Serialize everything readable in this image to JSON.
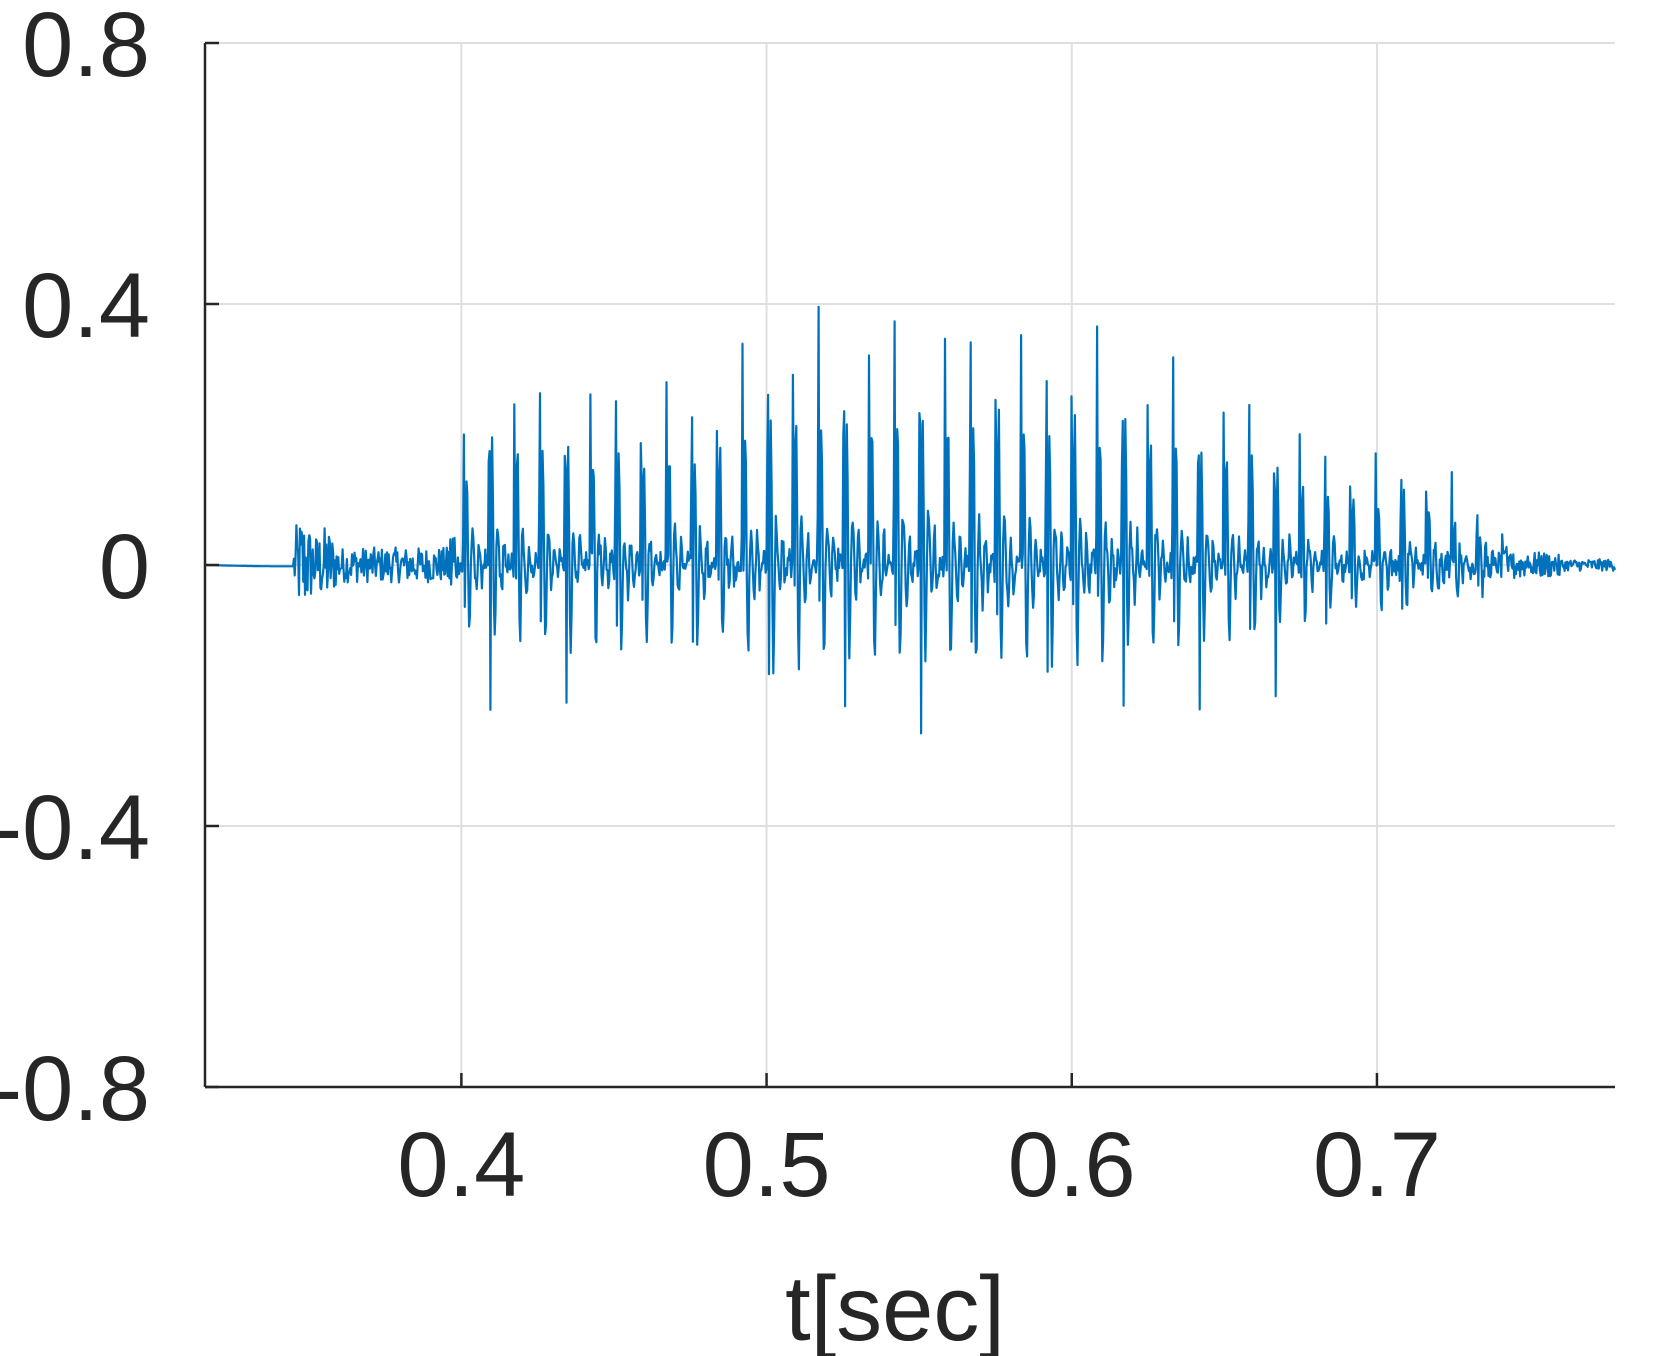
{
  "chart_data": {
    "type": "line",
    "title": "",
    "xlabel": "t[sec]",
    "ylabel": "",
    "xlim": [
      0.316,
      0.778
    ],
    "ylim": [
      -0.8,
      0.8
    ],
    "xticks": [
      0.4,
      0.5,
      0.6,
      0.7
    ],
    "xtick_labels": [
      "0.4",
      "0.5",
      "0.6",
      "0.7"
    ],
    "yticks": [
      -0.8,
      -0.4,
      0,
      0.4,
      0.8
    ],
    "ytick_labels": [
      "-0.8",
      "-0.4",
      "0",
      "0.4",
      "0.8"
    ],
    "grid": true,
    "series": [
      {
        "color": "#0072BD",
        "description_points": {
          "x": [
            0.316,
            0.345,
            0.346,
            0.348,
            0.352,
            0.356,
            0.36,
            0.365,
            0.37,
            0.375,
            0.38,
            0.385,
            0.39,
            0.395,
            0.3995,
            0.4005,
            0.405,
            0.407,
            0.411,
            0.4135,
            0.42,
            0.427,
            0.435,
            0.44,
            0.45,
            0.46,
            0.47,
            0.48,
            0.485,
            0.4935,
            0.5035,
            0.511,
            0.518,
            0.526,
            0.534,
            0.542,
            0.5505,
            0.559,
            0.567,
            0.575,
            0.583,
            0.592,
            0.6,
            0.608,
            0.616,
            0.624,
            0.633,
            0.641,
            0.649,
            0.658,
            0.666,
            0.674,
            0.683,
            0.691,
            0.699,
            0.707,
            0.716,
            0.724,
            0.733,
            0.742,
            0.75,
            0.76,
            0.77,
            0.778
          ],
          "peaks": [
            0.0,
            0.03,
            0.06,
            0.04,
            0.03,
            0.02,
            0.02,
            0.015,
            0.02,
            0.02,
            0.015,
            0.02,
            0.03,
            0.02,
            0.18,
            0.2,
            0.3,
            0.35,
            0.31,
            0.35,
            0.29,
            0.3,
            0.31,
            0.31,
            0.31,
            0.31,
            0.31,
            0.31,
            0.31,
            0.36,
            0.41,
            0.4,
            0.41,
            0.41,
            0.41,
            0.42,
            0.43,
            0.41,
            0.42,
            0.42,
            0.39,
            0.39,
            0.39,
            0.38,
            0.36,
            0.34,
            0.33,
            0.32,
            0.3,
            0.28,
            0.26,
            0.24,
            0.21,
            0.2,
            0.19,
            0.18,
            0.17,
            0.15,
            0.11,
            0.06,
            0.01,
            0.01,
            0.01,
            0.01
          ],
          "troughs": [
            0.0,
            -0.03,
            -0.07,
            -0.09,
            -0.05,
            -0.07,
            -0.03,
            -0.03,
            -0.03,
            -0.03,
            -0.03,
            -0.03,
            -0.03,
            -0.03,
            -0.05,
            -0.18,
            -0.23,
            -0.26,
            -0.26,
            -0.24,
            -0.22,
            -0.22,
            -0.22,
            -0.22,
            -0.2,
            -0.2,
            -0.2,
            -0.2,
            -0.19,
            -0.21,
            -0.25,
            -0.25,
            -0.26,
            -0.26,
            -0.26,
            -0.27,
            -0.27,
            -0.26,
            -0.26,
            -0.27,
            -0.27,
            -0.27,
            -0.28,
            -0.28,
            -0.29,
            -0.28,
            -0.27,
            -0.26,
            -0.25,
            -0.23,
            -0.21,
            -0.2,
            -0.17,
            -0.15,
            -0.13,
            -0.12,
            -0.08,
            -0.07,
            -0.05,
            -0.03,
            -0.01,
            -0.01,
            -0.01,
            -0.01
          ]
        }
      }
    ]
  }
}
